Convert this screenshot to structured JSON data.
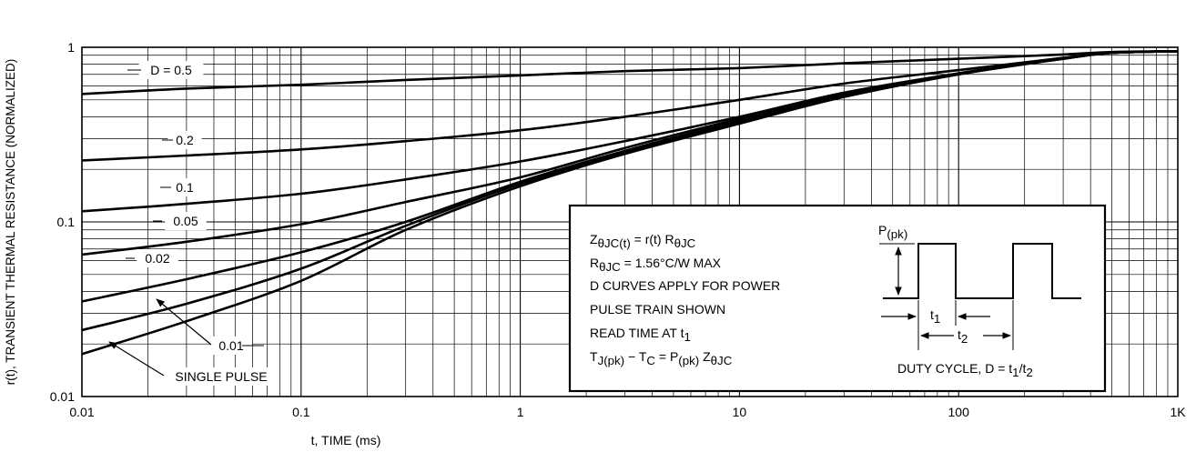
{
  "chart_data": {
    "type": "line",
    "scale": {
      "x": "log",
      "y": "log"
    },
    "xlabel": "t, TIME (ms)",
    "ylabel": "r(t), TRANSIENT THERMAL RESISTANCE (NORMALIZED)",
    "xlim": [
      0.01,
      1000
    ],
    "ylim": [
      0.01,
      1
    ],
    "grid": true,
    "x_ticks": [
      "0.01",
      "0.1",
      "1",
      "10",
      "100",
      "1K"
    ],
    "y_ticks": [
      "1",
      "0.1",
      "0.01"
    ],
    "series": [
      {
        "name": "D = 0.5",
        "x": [
          0.01,
          0.03,
          0.1,
          0.3,
          1,
          3,
          10,
          30,
          100,
          300,
          500,
          1000
        ],
        "y": [
          0.54,
          0.58,
          0.61,
          0.65,
          0.69,
          0.73,
          0.76,
          0.81,
          0.86,
          0.91,
          0.94,
          0.95
        ]
      },
      {
        "name": "0.2",
        "x": [
          0.01,
          0.03,
          0.1,
          0.3,
          1,
          3,
          10,
          30,
          100,
          300,
          500,
          1000
        ],
        "y": [
          0.225,
          0.24,
          0.26,
          0.29,
          0.335,
          0.4,
          0.5,
          0.62,
          0.74,
          0.87,
          0.93,
          0.95
        ]
      },
      {
        "name": "0.1",
        "x": [
          0.01,
          0.03,
          0.1,
          0.3,
          1,
          3,
          10,
          30,
          100,
          300,
          500,
          1000
        ],
        "y": [
          0.115,
          0.127,
          0.145,
          0.175,
          0.222,
          0.29,
          0.4,
          0.55,
          0.71,
          0.86,
          0.93,
          0.95
        ]
      },
      {
        "name": "0.05",
        "x": [
          0.01,
          0.03,
          0.1,
          0.3,
          1,
          3,
          10,
          30,
          100,
          300,
          500,
          1000
        ],
        "y": [
          0.065,
          0.077,
          0.097,
          0.13,
          0.18,
          0.265,
          0.39,
          0.54,
          0.71,
          0.86,
          0.93,
          0.95
        ]
      },
      {
        "name": "0.02",
        "x": [
          0.01,
          0.03,
          0.1,
          0.3,
          1,
          3,
          10,
          30,
          100,
          300,
          500,
          1000
        ],
        "y": [
          0.035,
          0.047,
          0.067,
          0.1,
          0.17,
          0.255,
          0.38,
          0.53,
          0.7,
          0.86,
          0.93,
          0.95
        ]
      },
      {
        "name": "0.01",
        "x": [
          0.01,
          0.03,
          0.1,
          0.3,
          1,
          3,
          10,
          30,
          100,
          300,
          500,
          1000
        ],
        "y": [
          0.024,
          0.034,
          0.054,
          0.095,
          0.165,
          0.25,
          0.37,
          0.52,
          0.7,
          0.86,
          0.93,
          0.95
        ]
      },
      {
        "name": "SINGLE PULSE",
        "x": [
          0.01,
          0.03,
          0.1,
          0.3,
          1,
          3,
          10,
          30,
          100,
          300,
          500,
          1000
        ],
        "y": [
          0.0175,
          0.027,
          0.046,
          0.09,
          0.16,
          0.245,
          0.365,
          0.52,
          0.7,
          0.86,
          0.93,
          0.95
        ]
      }
    ],
    "annotations": {
      "formula_lines": [
        {
          "parts": [
            [
              "Z",
              ""
            ],
            [
              "θJC(t)",
              "sub"
            ],
            [
              " = r(t) R",
              ""
            ],
            [
              "θJC",
              "sub"
            ]
          ]
        },
        {
          "parts": [
            [
              "R",
              ""
            ],
            [
              "θJC",
              "sub"
            ],
            [
              " = 1.56°C/W MAX",
              ""
            ]
          ]
        },
        {
          "parts": [
            [
              "D CURVES APPLY FOR POWER",
              ""
            ]
          ]
        },
        {
          "parts": [
            [
              "PULSE TRAIN SHOWN",
              ""
            ]
          ]
        },
        {
          "parts": [
            [
              "READ TIME AT t",
              ""
            ],
            [
              "1",
              "sub"
            ]
          ]
        },
        {
          "parts": [
            [
              "T",
              ""
            ],
            [
              "J(pk)",
              "sub"
            ],
            [
              " − T",
              ""
            ],
            [
              "C",
              "sub"
            ],
            [
              " = P",
              ""
            ],
            [
              "(pk)",
              "sub"
            ],
            [
              " Z",
              ""
            ],
            [
              "θJC",
              "sub"
            ]
          ]
        }
      ],
      "pulse_diagram": {
        "peak_label": {
          "parts": [
            [
              "P",
              ""
            ],
            [
              "(pk)",
              "sub"
            ]
          ]
        },
        "t1_label": {
          "parts": [
            [
              "t",
              ""
            ],
            [
              "1",
              "sub"
            ]
          ]
        },
        "t2_label": {
          "parts": [
            [
              "t",
              ""
            ],
            [
              "2",
              "sub"
            ]
          ]
        },
        "duty_cycle_label": {
          "parts": [
            [
              "DUTY CYCLE, D = t",
              ""
            ],
            [
              "1",
              "sub"
            ],
            [
              "/t",
              ""
            ],
            [
              "2",
              "sub"
            ]
          ]
        }
      }
    }
  }
}
